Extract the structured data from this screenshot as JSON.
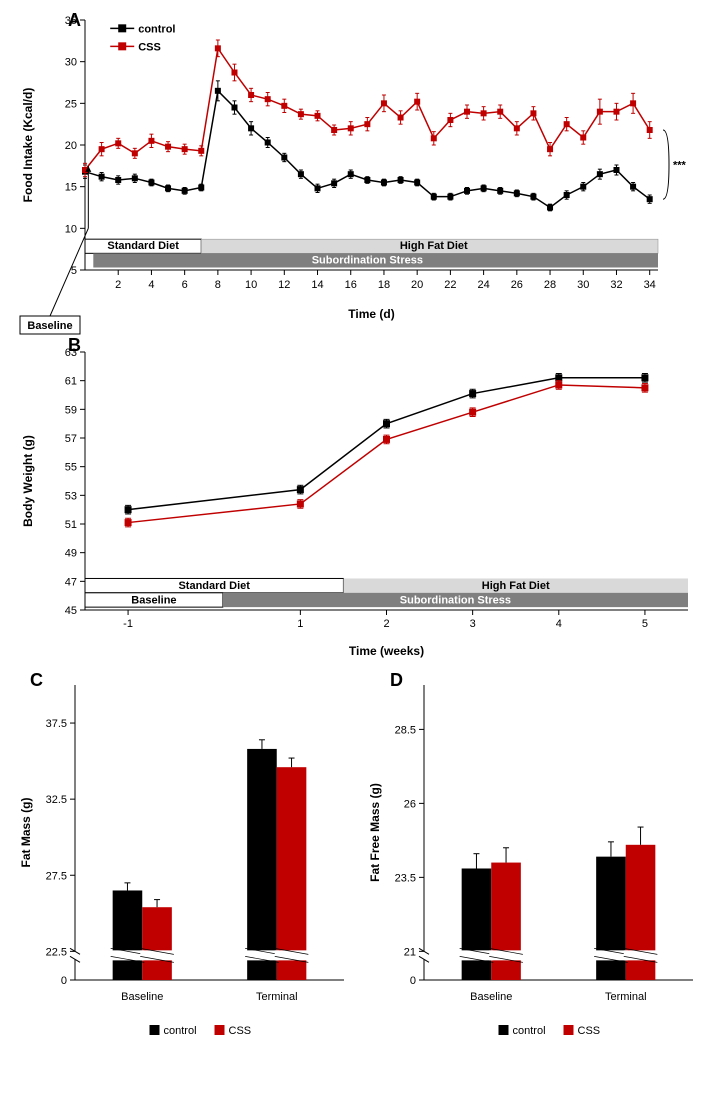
{
  "colors": {
    "control": "#000000",
    "css": "#c00000",
    "std_diet_fill": "#ffffff",
    "hfd_fill": "#d9d9d9",
    "stress_fill": "#7f7f7f",
    "grid": "#e0e0e0",
    "axis": "#000000",
    "baseline_box": "#ffffff"
  },
  "labels": {
    "panelA": "A",
    "panelB": "B",
    "panelC": "C",
    "panelD": "D",
    "control": "control",
    "css": "CSS",
    "std_diet": "Standard  Diet",
    "hfd": "High Fat Diet",
    "stress": "Subordination Stress",
    "baseline": "Baseline",
    "terminal": "Terminal",
    "time_d": "Time (d)",
    "time_w": "Time (weeks)",
    "food_intake": "Food Intake (Kcal/d)",
    "body_weight": "Body Weight (g)",
    "fat_mass": "Fat Mass (g)",
    "ffm": "Fat Free Mass (g)",
    "sig": "***"
  },
  "panelA": {
    "type": "line",
    "xlim": [
      0,
      34.5
    ],
    "ylim": [
      5,
      35
    ],
    "ytick_step": 5,
    "xticks_start": 2,
    "xticks_step": 2,
    "xticks_end": 34,
    "diet_switch_day": 7,
    "stress_start_day": 0.5,
    "control": {
      "x": [
        0,
        1,
        2,
        3,
        4,
        5,
        6,
        7,
        8,
        9,
        10,
        11,
        12,
        13,
        14,
        15,
        16,
        17,
        18,
        19,
        20,
        21,
        22,
        23,
        24,
        25,
        26,
        27,
        28,
        29,
        30,
        31,
        32,
        33,
        34
      ],
      "y": [
        16.8,
        16.2,
        15.8,
        16.0,
        15.5,
        14.8,
        14.5,
        14.9,
        26.5,
        24.5,
        22.0,
        20.3,
        18.5,
        16.5,
        14.8,
        15.4,
        16.5,
        15.8,
        15.5,
        15.8,
        15.5,
        13.8,
        13.8,
        14.5,
        14.8,
        14.5,
        14.2,
        13.8,
        12.5,
        14.0,
        15.0,
        16.5,
        17.0,
        15.0,
        13.5
      ],
      "err": [
        0.8,
        0.5,
        0.5,
        0.5,
        0.4,
        0.4,
        0.4,
        0.4,
        1.2,
        0.8,
        0.8,
        0.6,
        0.5,
        0.5,
        0.5,
        0.5,
        0.5,
        0.4,
        0.4,
        0.4,
        0.4,
        0.4,
        0.4,
        0.4,
        0.4,
        0.4,
        0.4,
        0.4,
        0.4,
        0.5,
        0.5,
        0.6,
        0.6,
        0.5,
        0.5
      ]
    },
    "css": {
      "x": [
        0,
        1,
        2,
        3,
        4,
        5,
        6,
        7,
        8,
        9,
        10,
        11,
        12,
        13,
        14,
        15,
        16,
        17,
        18,
        19,
        20,
        21,
        22,
        23,
        24,
        25,
        26,
        27,
        28,
        29,
        30,
        31,
        32,
        33,
        34
      ],
      "y": [
        17.0,
        19.5,
        20.2,
        19.0,
        20.5,
        19.8,
        19.5,
        19.3,
        31.6,
        28.7,
        26.0,
        25.5,
        24.7,
        23.7,
        23.5,
        21.8,
        22.0,
        22.5,
        25.0,
        23.3,
        25.2,
        20.8,
        23.0,
        24.0,
        23.8,
        24.0,
        22.0,
        23.8,
        19.5,
        22.5,
        20.9,
        24.0,
        24.0,
        25.0,
        21.8
      ],
      "err": [
        0.8,
        0.8,
        0.6,
        0.6,
        0.8,
        0.6,
        0.6,
        0.6,
        1.0,
        1.0,
        0.8,
        0.8,
        0.8,
        0.6,
        0.6,
        0.6,
        0.8,
        0.8,
        1.0,
        0.8,
        1.0,
        0.8,
        0.8,
        0.8,
        0.8,
        0.8,
        0.8,
        0.8,
        0.8,
        0.8,
        0.8,
        1.5,
        1.0,
        1.2,
        1.0
      ]
    }
  },
  "panelB": {
    "type": "line",
    "xlim": [
      -1.5,
      5.5
    ],
    "ylim": [
      45,
      63
    ],
    "ytick_step": 2,
    "xticks": [
      -1,
      1,
      2,
      3,
      4,
      5
    ],
    "diet_switch_week": 1.5,
    "baseline_end": 0.1,
    "control": {
      "x": [
        -1,
        1,
        2,
        3,
        4,
        5
      ],
      "y": [
        52.0,
        53.4,
        58.0,
        60.1,
        61.2,
        61.2
      ],
      "err": [
        0.3,
        0.3,
        0.3,
        0.3,
        0.3,
        0.3
      ]
    },
    "css": {
      "x": [
        -1,
        1,
        2,
        3,
        4,
        5
      ],
      "y": [
        51.1,
        52.4,
        56.9,
        58.8,
        60.7,
        60.5
      ],
      "err": [
        0.3,
        0.3,
        0.3,
        0.3,
        0.3,
        0.3
      ]
    }
  },
  "panelC": {
    "type": "bar",
    "ylim": [
      0,
      40
    ],
    "ytick_step": 5,
    "break_low": 22.5,
    "break_high": 23.5,
    "groups": [
      "Baseline",
      "Terminal"
    ],
    "control": {
      "y": [
        26.5,
        35.8
      ],
      "err": [
        0.5,
        0.6
      ]
    },
    "css": {
      "y": [
        25.4,
        34.6
      ],
      "err": [
        0.5,
        0.6
      ]
    }
  },
  "panelD": {
    "type": "bar",
    "ylim": [
      0,
      30
    ],
    "ytick_step": 2.5,
    "break_low": 21,
    "break_high": 22,
    "groups": [
      "Baseline",
      "Terminal"
    ],
    "control": {
      "y": [
        23.8,
        24.2
      ],
      "err": [
        0.5,
        0.5
      ]
    },
    "css": {
      "y": [
        24.0,
        24.6
      ],
      "err": [
        0.5,
        0.6
      ]
    }
  }
}
